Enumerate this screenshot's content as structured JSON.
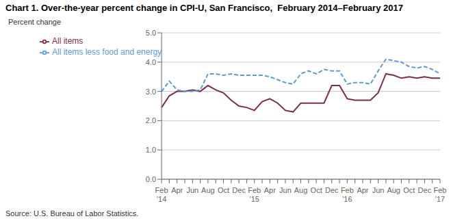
{
  "chart_data": {
    "type": "line",
    "title": "Chart 1. Over-the-year percent change in CPI-U, San Francisco,  February 2014–February 2017",
    "ylabel": "Percent change",
    "annotations": [
      "Source: U.S. Bureau of Labor Statistics."
    ],
    "categories": [
      "Feb\n'14",
      null,
      "Apr",
      null,
      "Jun",
      null,
      "Aug",
      null,
      "Oct",
      null,
      "Dec",
      null,
      "Feb\n'15",
      null,
      "Apr",
      null,
      "Jun",
      null,
      "Aug",
      null,
      "Oct",
      null,
      "Dec",
      null,
      "Feb\n'16",
      null,
      "Apr",
      null,
      "Jun",
      null,
      "Aug",
      null,
      "Oct",
      null,
      "Dec",
      null,
      "Feb\n'17"
    ],
    "series": [
      {
        "name": "All items",
        "color": "#7B2D4E",
        "line_style": "solid",
        "values": [
          2.45,
          2.85,
          3.0,
          3.0,
          3.05,
          3.0,
          3.2,
          3.05,
          2.95,
          2.7,
          2.5,
          2.45,
          2.35,
          2.65,
          2.75,
          2.6,
          2.35,
          2.3,
          2.6,
          2.6,
          2.6,
          2.6,
          3.2,
          3.2,
          2.75,
          2.7,
          2.7,
          2.7,
          2.95,
          3.6,
          3.55,
          3.45,
          3.5,
          3.45,
          3.5,
          3.45,
          3.45
        ]
      },
      {
        "name": "All items less food and energy",
        "color": "#5B9BD5",
        "line_style": "dashed",
        "values": [
          3.0,
          3.35,
          3.05,
          3.0,
          3.0,
          3.05,
          3.6,
          3.6,
          3.55,
          3.6,
          3.55,
          3.55,
          3.55,
          3.55,
          3.5,
          3.4,
          3.3,
          3.25,
          3.6,
          3.7,
          3.6,
          3.75,
          3.7,
          3.7,
          3.25,
          3.3,
          3.3,
          3.25,
          3.7,
          4.1,
          4.05,
          4.0,
          3.85,
          3.8,
          3.85,
          3.75,
          3.6
        ]
      }
    ],
    "ylim": [
      0.0,
      5.0
    ],
    "yticks": [
      {
        "value": 0,
        "label": "0.0"
      },
      {
        "value": 1,
        "label": "1.0"
      },
      {
        "value": 2,
        "label": "2.0"
      },
      {
        "value": 3,
        "label": "3.0"
      },
      {
        "value": 4,
        "label": "4.0"
      },
      {
        "value": 5,
        "label": "5.0"
      }
    ],
    "grid": true,
    "legend": "upper left"
  }
}
